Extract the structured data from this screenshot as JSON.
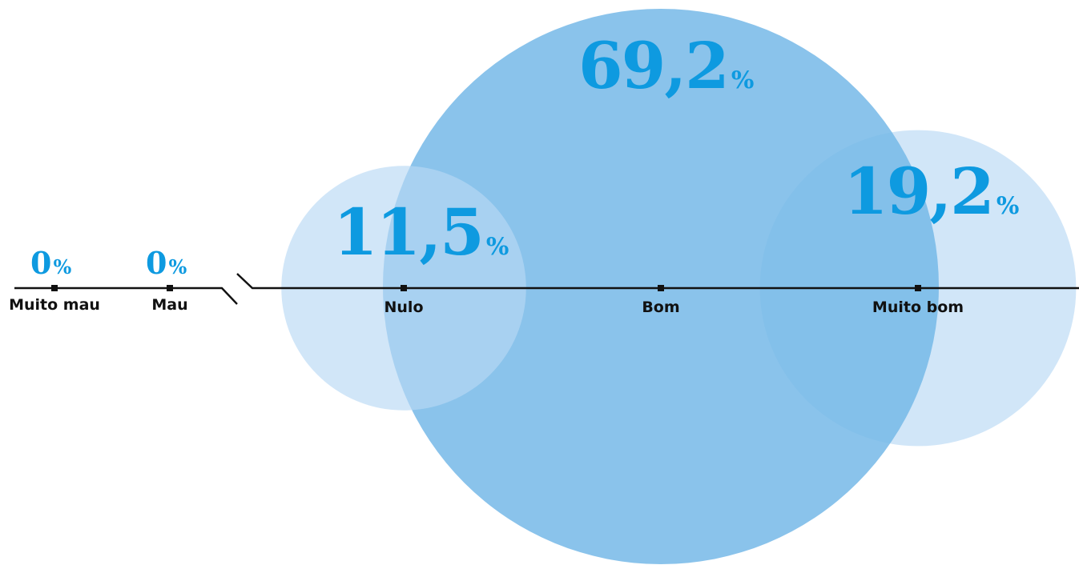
{
  "chart_data": {
    "type": "bubble",
    "categories": [
      "Muito mau",
      "Mau",
      "Nulo",
      "Bom",
      "Muito bom"
    ],
    "values": [
      0,
      0,
      11.5,
      69.2,
      19.2
    ],
    "value_labels": [
      {
        "number": "0",
        "unit": "%"
      },
      {
        "number": "0",
        "unit": "%"
      },
      {
        "number": "11,5",
        "unit": "%"
      },
      {
        "number": "69,2",
        "unit": "%"
      },
      {
        "number": "19,2",
        "unit": "%"
      }
    ],
    "axis_break": "between Mau and Nulo",
    "colors": {
      "value_text": "#0e9ae0",
      "bubble_large": "#75b9e8",
      "bubble_small": "#b9d8f4",
      "axis": "#111111"
    }
  }
}
